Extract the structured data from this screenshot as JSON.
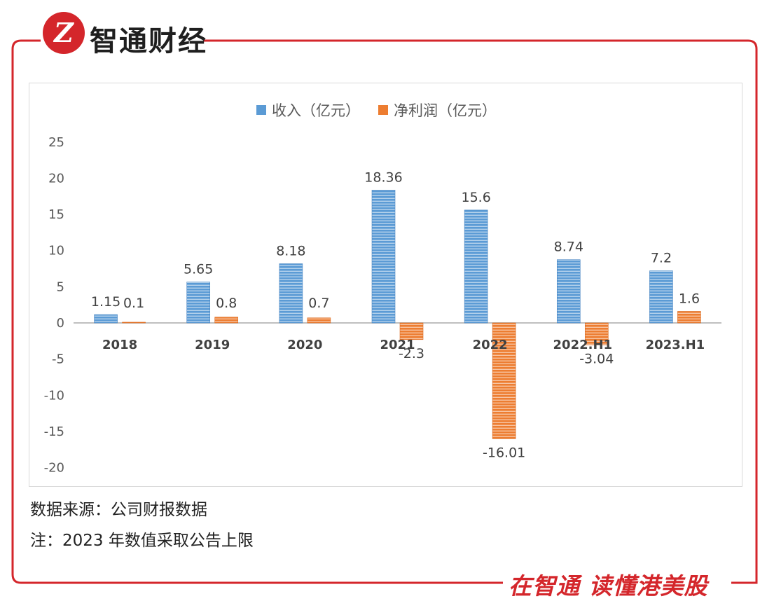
{
  "brand": {
    "logo_glyph": "Z",
    "name": "智通财经",
    "slogan": "在智通 读懂港美股",
    "accent": "#d4262b"
  },
  "notes": {
    "source": "数据来源：公司财报数据",
    "note": "注：2023 年数值采取公告上限"
  },
  "chart_data": {
    "type": "bar",
    "categories": [
      "2018",
      "2019",
      "2020",
      "2021",
      "2022",
      "2022.H1",
      "2023.H1"
    ],
    "series": [
      {
        "name": "收入（亿元）",
        "values": [
          1.15,
          5.65,
          8.18,
          18.36,
          15.6,
          8.74,
          7.2
        ],
        "color": "#5b9bd5"
      },
      {
        "name": "净利润（亿元）",
        "values": [
          0.1,
          0.8,
          0.7,
          -2.3,
          -16.01,
          -3.04,
          1.6
        ],
        "color": "#ed7d31"
      }
    ],
    "value_labels": [
      [
        "1.15",
        "5.65",
        "8.18",
        "18.36",
        "15.6",
        "8.74",
        "7.2"
      ],
      [
        "0.1",
        "0.8",
        "0.7",
        "-2.3",
        "-16.01",
        "-3.04",
        "1.6"
      ]
    ],
    "yticks": [
      "25",
      "20",
      "15",
      "10",
      "5",
      "0",
      "-5",
      "-10",
      "-15",
      "-20"
    ],
    "ylim": [
      -20,
      25
    ],
    "legend_position": "top",
    "grid": false
  }
}
